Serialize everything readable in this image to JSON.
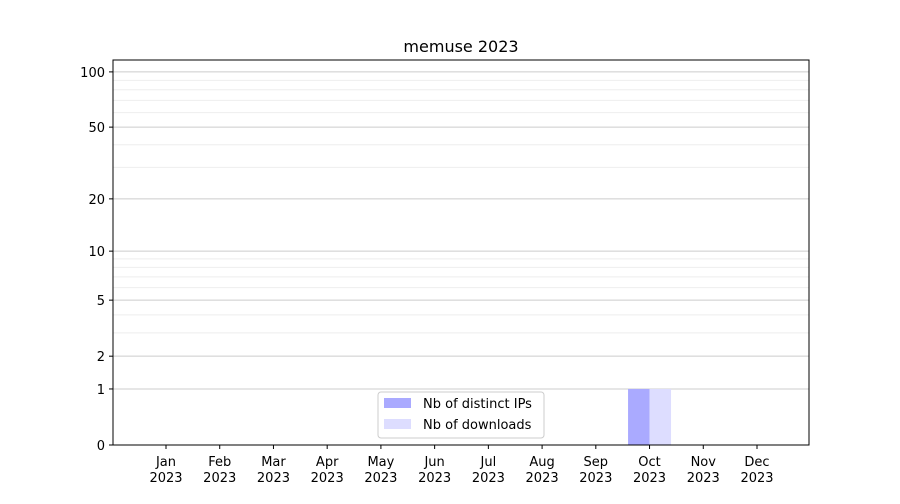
{
  "chart_data": {
    "type": "bar",
    "title": "memuse 2023",
    "xlabel": "",
    "ylabel": "",
    "yscale": "log(1+y)",
    "ylim": [
      0,
      116
    ],
    "yticks": [
      0,
      1,
      2,
      5,
      10,
      20,
      50,
      100
    ],
    "grid": true,
    "legend_placement": "bottom-center",
    "categories": [
      "Jan\n2023",
      "Feb\n2023",
      "Mar\n2023",
      "Apr\n2023",
      "May\n2023",
      "Jun\n2023",
      "Jul\n2023",
      "Aug\n2023",
      "Sep\n2023",
      "Oct\n2023",
      "Nov\n2023",
      "Dec\n2023"
    ],
    "series": [
      {
        "name": "Nb of distinct IPs",
        "color": "#aaaaff",
        "values": [
          0,
          0,
          0,
          0,
          0,
          0,
          0,
          0,
          0,
          1,
          0,
          0
        ]
      },
      {
        "name": "Nb of downloads",
        "color": "#ddddff",
        "values": [
          0,
          0,
          0,
          0,
          0,
          0,
          0,
          0,
          0,
          1,
          0,
          0
        ]
      }
    ]
  }
}
